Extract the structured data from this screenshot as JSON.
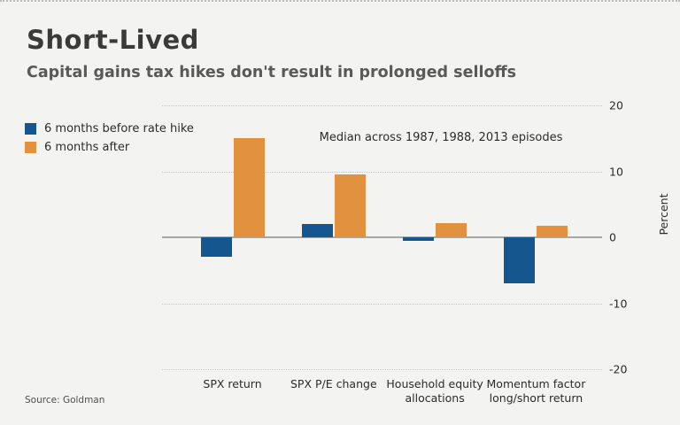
{
  "header": {
    "title": "Short-Lived",
    "subtitle": "Capital gains tax hikes don't result in prolonged selloffs"
  },
  "annotation": "Median across 1987, 1988, 2013 episodes",
  "source": "Source: Goldman",
  "colors": {
    "before_blue": "#15568f",
    "after_orange": "#e2913f",
    "background": "#f3f3f1"
  },
  "legend": {
    "items": [
      {
        "label": "6 months before rate hike",
        "color": "#15568f"
      },
      {
        "label": "6 months after",
        "color": "#e2913f"
      }
    ]
  },
  "chart_data": {
    "type": "bar",
    "categories": [
      "SPX return",
      "SPX P/E change",
      "Household equity\nallocations",
      "Momentum factor\nlong/short return"
    ],
    "series": [
      {
        "name": "6 months before rate hike",
        "color": "#15568f",
        "values": [
          -3,
          2,
          -0.5,
          -7
        ]
      },
      {
        "name": "6 months after",
        "color": "#e2913f",
        "values": [
          15,
          9.5,
          2.2,
          1.8
        ]
      }
    ],
    "title": "Short-Lived",
    "subtitle": "Capital gains tax hikes don't result in prolonged selloffs",
    "note": "Median across 1987, 1988, 2013 episodes",
    "xlabel": "",
    "ylabel": "Percent",
    "ylim": [
      -20,
      20
    ],
    "yticks": [
      20,
      10,
      0,
      -10,
      -20
    ],
    "grid": true,
    "legend_position": "top-left",
    "zero_line": true
  }
}
